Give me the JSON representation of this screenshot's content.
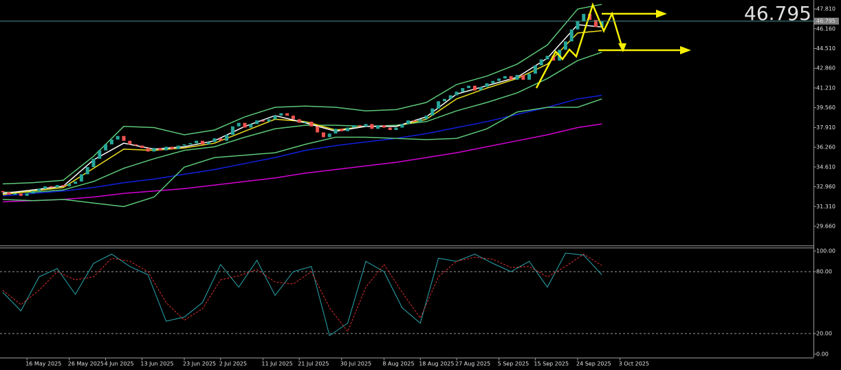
{
  "chart_data": [
    {
      "type": "candlestick",
      "last_price": 46.795,
      "up_color": "#26a69a",
      "down_color": "#ef5350",
      "price_line_color": "#4a8f8f",
      "last_price_color": "#7cfc00",
      "ylim": [
        28.05,
        48.56
      ],
      "yticks": [
        {
          "value": 47.81,
          "label": "47.810"
        },
        {
          "value": 46.16,
          "label": "46.160"
        },
        {
          "value": 44.51,
          "label": "44.510"
        },
        {
          "value": 42.86,
          "label": "42.860"
        },
        {
          "value": 41.21,
          "label": "41.210"
        },
        {
          "value": 39.56,
          "label": "39.560"
        },
        {
          "value": 37.91,
          "label": "37.910"
        },
        {
          "value": 36.26,
          "label": "36.260"
        },
        {
          "value": 34.61,
          "label": "34.610"
        },
        {
          "value": 32.96,
          "label": "32.960"
        },
        {
          "value": 31.31,
          "label": "31.310"
        },
        {
          "value": 29.66,
          "label": "29.660"
        }
      ],
      "open": [
        32.6,
        32.5,
        32.3,
        32.4,
        32.2,
        32.4,
        32.6,
        32.8,
        33.0,
        32.9,
        33.1,
        33.0,
        33.2,
        33.4,
        34.0,
        34.6,
        35.3,
        36.0,
        36.5,
        36.9,
        37.2,
        36.8,
        36.5,
        36.4,
        36.2,
        35.9,
        36.2,
        36.0,
        36.3,
        36.1,
        36.4,
        36.5,
        36.6,
        36.8,
        36.5,
        36.7,
        37.0,
        36.8,
        37.3,
        38.0,
        38.3,
        37.9,
        38.2,
        38.5,
        38.4,
        38.6,
        38.9,
        39.1,
        38.9,
        38.6,
        38.3,
        38.4,
        38.0,
        37.5,
        37.1,
        37.4,
        37.8,
        37.6,
        37.9,
        38.1,
        38.0,
        38.2,
        37.8,
        38.1,
        37.9,
        37.7,
        37.9,
        38.2,
        38.5,
        38.4,
        38.6,
        38.9,
        39.5,
        40.1,
        40.3,
        40.6,
        40.9,
        41.2,
        41.4,
        41.0,
        41.3,
        41.6,
        41.8,
        42.0,
        42.2,
        41.9,
        42.3,
        41.9,
        42.4,
        43.1,
        43.6,
        43.9,
        43.5,
        44.4,
        45.1,
        46.1,
        46.8,
        47.4,
        46.9,
        46.3
      ],
      "close": [
        32.5,
        32.3,
        32.4,
        32.2,
        32.4,
        32.6,
        32.8,
        33.0,
        32.9,
        33.1,
        33.0,
        33.2,
        33.4,
        34.0,
        34.6,
        35.3,
        36.0,
        36.5,
        36.9,
        37.2,
        36.8,
        36.5,
        36.4,
        36.2,
        35.9,
        36.2,
        36.0,
        36.3,
        36.1,
        36.4,
        36.5,
        36.6,
        36.8,
        36.5,
        36.7,
        37.0,
        36.8,
        37.3,
        38.0,
        38.3,
        37.9,
        38.2,
        38.5,
        38.4,
        38.6,
        38.9,
        39.1,
        38.9,
        38.6,
        38.3,
        38.4,
        38.0,
        37.5,
        37.1,
        37.4,
        37.8,
        37.6,
        37.9,
        38.1,
        38.0,
        38.2,
        37.8,
        38.1,
        37.9,
        37.7,
        37.9,
        38.2,
        38.5,
        38.4,
        38.6,
        38.9,
        39.5,
        40.1,
        40.3,
        40.6,
        40.9,
        41.2,
        41.4,
        41.0,
        41.3,
        41.6,
        41.8,
        42.0,
        42.2,
        41.9,
        42.3,
        41.9,
        42.4,
        43.1,
        43.6,
        43.9,
        43.5,
        44.4,
        45.1,
        46.1,
        46.8,
        47.4,
        46.9,
        46.3,
        46.8
      ],
      "line_x": [
        0,
        5,
        10,
        15,
        20,
        25,
        30,
        35,
        40,
        45,
        50,
        55,
        60,
        65,
        70,
        75,
        80,
        85,
        90,
        95,
        99
      ],
      "lines": [
        {
          "color": "#d400d4",
          "values": [
            31.7,
            31.8,
            31.9,
            32.1,
            32.4,
            32.6,
            32.8,
            33.1,
            33.4,
            33.7,
            34.1,
            34.4,
            34.7,
            35.0,
            35.4,
            35.8,
            36.3,
            36.8,
            37.3,
            37.9,
            38.2
          ]
        },
        {
          "color": "#1020e0",
          "values": [
            32.2,
            32.4,
            32.6,
            32.9,
            33.3,
            33.6,
            34.0,
            34.4,
            34.9,
            35.4,
            36.0,
            36.4,
            36.7,
            37.0,
            37.4,
            37.9,
            38.4,
            39.0,
            39.6,
            40.3,
            40.6
          ]
        },
        {
          "color": "#5cc878",
          "values": [
            33.2,
            33.3,
            33.5,
            35.5,
            38.0,
            37.9,
            37.3,
            37.7,
            38.8,
            39.6,
            39.7,
            39.6,
            39.3,
            39.4,
            40.0,
            41.5,
            42.2,
            43.2,
            44.8,
            47.8,
            48.2
          ]
        },
        {
          "color": "#5cc878",
          "values": [
            31.9,
            31.8,
            31.9,
            31.6,
            31.3,
            32.1,
            34.6,
            35.4,
            35.6,
            35.8,
            36.5,
            37.1,
            37.1,
            37.0,
            36.9,
            37.0,
            37.8,
            39.2,
            39.6,
            39.6,
            40.3
          ]
        },
        {
          "color": "#5cc878",
          "values": [
            32.5,
            32.5,
            32.7,
            33.4,
            34.5,
            35.3,
            36.0,
            36.3,
            37.1,
            37.8,
            38.1,
            38.1,
            38.0,
            38.1,
            38.4,
            39.3,
            40.0,
            40.8,
            42.0,
            43.5,
            44.2
          ]
        },
        {
          "color": "#f0e020",
          "values": [
            32.3,
            32.6,
            32.9,
            34.5,
            36.1,
            36.0,
            36.2,
            36.6,
            37.6,
            38.6,
            38.4,
            37.7,
            38.0,
            38.0,
            38.6,
            40.3,
            41.2,
            42.0,
            43.2,
            45.8,
            46.0
          ]
        },
        {
          "color": "#ffffff",
          "values": [
            32.4,
            32.7,
            33.0,
            35.2,
            36.6,
            36.1,
            36.3,
            36.8,
            38.0,
            38.9,
            38.3,
            37.6,
            38.0,
            38.0,
            38.8,
            40.7,
            41.4,
            42.1,
            43.7,
            46.5,
            46.3
          ]
        }
      ]
    },
    {
      "type": "line",
      "ylim": [
        -3.33,
        103.33
      ],
      "yticks": [
        {
          "value": 100,
          "label": "100.00"
        },
        {
          "value": 80,
          "label": "80.00"
        },
        {
          "value": 20,
          "label": "20.00"
        },
        {
          "value": 0,
          "label": "0.00"
        }
      ],
      "levels": [
        80,
        20
      ],
      "xticks": [
        {
          "value": 4,
          "label": "16 May 2025"
        },
        {
          "value": 11,
          "label": "26 May 2025"
        },
        {
          "value": 17,
          "label": "4 Jun 2025"
        },
        {
          "value": 23,
          "label": "13 Jun 2025"
        },
        {
          "value": 30,
          "label": "23 Jun 2025"
        },
        {
          "value": 36,
          "label": "2 Jul 2025"
        },
        {
          "value": 43,
          "label": "11 Jul 2025"
        },
        {
          "value": 49,
          "label": "21 Jul 2025"
        },
        {
          "value": 56,
          "label": "30 Jul 2025"
        },
        {
          "value": 63,
          "label": "8 Aug 2025"
        },
        {
          "value": 69,
          "label": "18 Aug 2025"
        },
        {
          "value": 75,
          "label": "27 Aug 2025"
        },
        {
          "value": 82,
          "label": "5 Sep 2025"
        },
        {
          "value": 88,
          "label": "15 Sep 2025"
        },
        {
          "value": 95,
          "label": "24 Sep 2025"
        },
        {
          "value": 102,
          "label": "3 Oct 2025"
        }
      ],
      "x": [
        0,
        3,
        6,
        9,
        12,
        15,
        18,
        21,
        24,
        27,
        30,
        33,
        36,
        39,
        42,
        45,
        48,
        51,
        54,
        57,
        60,
        63,
        66,
        69,
        72,
        75,
        78,
        81,
        84,
        87,
        90,
        93,
        96,
        99
      ],
      "series": [
        {
          "color": "#2aa8b0",
          "dashed": false,
          "values": [
            60,
            42,
            75,
            83,
            58,
            88,
            97,
            85,
            77,
            32,
            36,
            50,
            87,
            65,
            91,
            57,
            80,
            85,
            18,
            30,
            90,
            80,
            45,
            30,
            93,
            90,
            97,
            88,
            80,
            90,
            65,
            98,
            96,
            77
          ]
        },
        {
          "color": "#e03030",
          "dashed": true,
          "values": [
            62,
            48,
            62,
            80,
            72,
            75,
            93,
            90,
            80,
            50,
            33,
            44,
            72,
            76,
            82,
            70,
            68,
            80,
            45,
            22,
            65,
            87,
            60,
            35,
            75,
            90,
            94,
            92,
            84,
            85,
            75,
            85,
            97,
            86
          ]
        }
      ]
    }
  ]
}
